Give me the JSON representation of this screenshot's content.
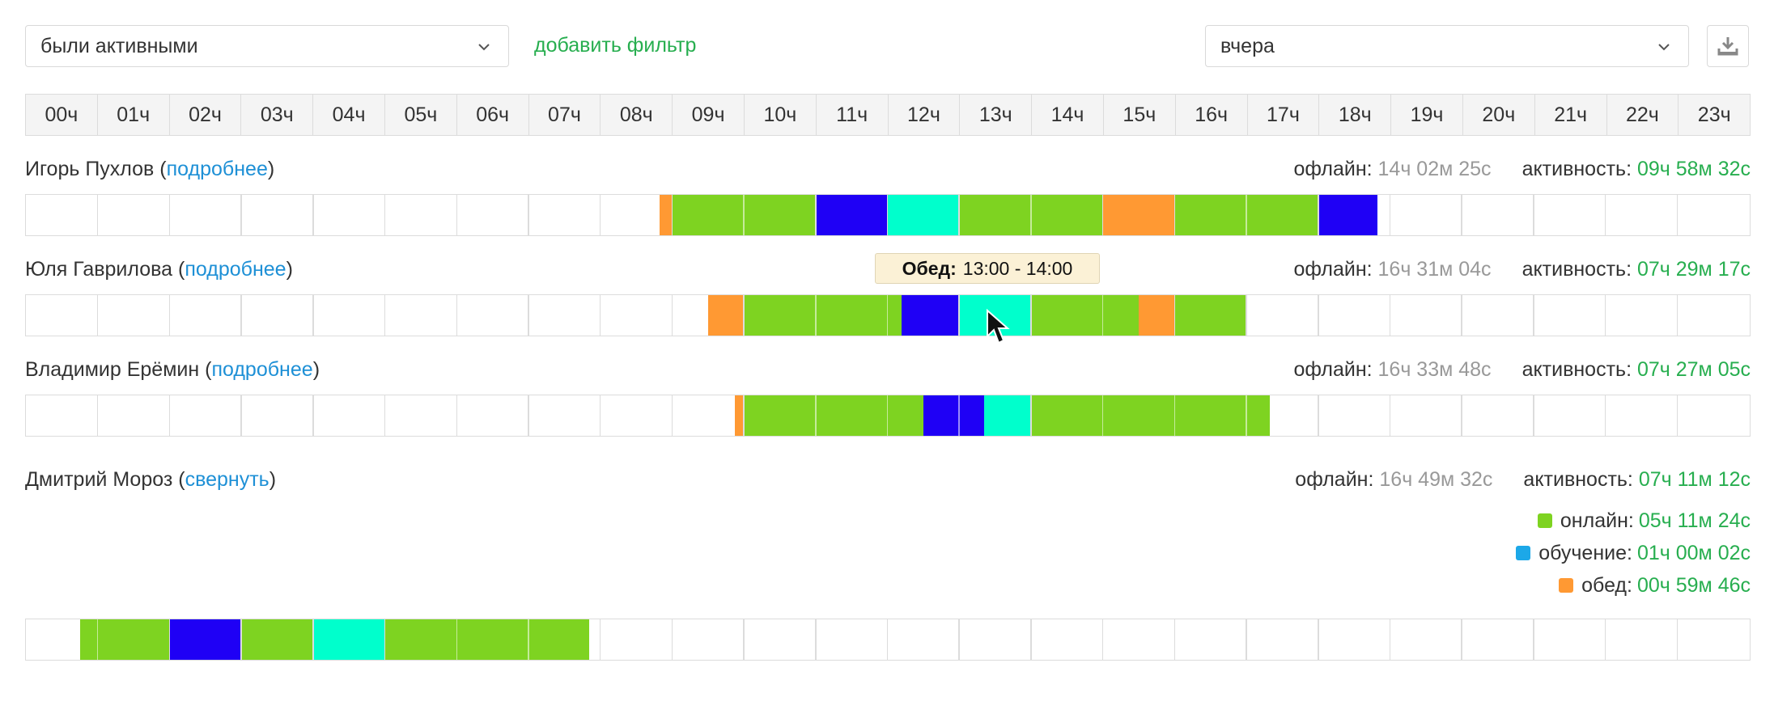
{
  "filter": {
    "selected": "были активными",
    "add_filter_label": "добавить фильтр"
  },
  "period": {
    "selected": "вчера"
  },
  "hours": [
    "00ч",
    "01ч",
    "02ч",
    "03ч",
    "04ч",
    "05ч",
    "06ч",
    "07ч",
    "08ч",
    "09ч",
    "10ч",
    "11ч",
    "12ч",
    "13ч",
    "14ч",
    "15ч",
    "16ч",
    "17ч",
    "18ч",
    "19ч",
    "20ч",
    "21ч",
    "22ч",
    "23ч"
  ],
  "labels": {
    "offline": "офлайн:",
    "activity": "активность:"
  },
  "colors": {
    "online": "#7ed321",
    "training": "#1f00f5",
    "lunch": "#ff9933",
    "meeting": "#00ffcc",
    "legend_training": "#1ca8e8"
  },
  "tooltip": {
    "title": "Обед:",
    "range": "13:00 - 14:00"
  },
  "employees": [
    {
      "name": "Игорь Пухлов",
      "link": "подробнее",
      "offline": "14ч 02м 25с",
      "activity": "09ч 58м 32с",
      "segments": [
        {
          "start": 8.83,
          "end": 9.0,
          "kind": "lunch"
        },
        {
          "start": 9.0,
          "end": 11.0,
          "kind": "online"
        },
        {
          "start": 11.0,
          "end": 12.0,
          "kind": "training"
        },
        {
          "start": 12.0,
          "end": 13.0,
          "kind": "meeting"
        },
        {
          "start": 13.0,
          "end": 15.0,
          "kind": "online"
        },
        {
          "start": 15.0,
          "end": 16.0,
          "kind": "lunch"
        },
        {
          "start": 16.0,
          "end": 18.0,
          "kind": "online"
        },
        {
          "start": 18.0,
          "end": 18.83,
          "kind": "training"
        }
      ]
    },
    {
      "name": "Юля Гаврилова",
      "link": "подробнее",
      "offline": "16ч 31м 04с",
      "activity": "07ч 29м 17с",
      "segments": [
        {
          "start": 9.5,
          "end": 10.0,
          "kind": "lunch"
        },
        {
          "start": 10.0,
          "end": 12.2,
          "kind": "online"
        },
        {
          "start": 12.2,
          "end": 13.0,
          "kind": "training"
        },
        {
          "start": 13.0,
          "end": 14.0,
          "kind": "meeting"
        },
        {
          "start": 14.0,
          "end": 15.5,
          "kind": "online"
        },
        {
          "start": 15.5,
          "end": 16.0,
          "kind": "lunch"
        },
        {
          "start": 16.0,
          "end": 17.0,
          "kind": "online"
        }
      ]
    },
    {
      "name": "Владимир Ерёмин",
      "link": "подробнее",
      "offline": "16ч 33м 48с",
      "activity": "07ч 27м 05с",
      "segments": [
        {
          "start": 9.87,
          "end": 10.0,
          "kind": "lunch"
        },
        {
          "start": 10.0,
          "end": 12.5,
          "kind": "online"
        },
        {
          "start": 12.5,
          "end": 13.35,
          "kind": "training"
        },
        {
          "start": 13.35,
          "end": 14.0,
          "kind": "meeting"
        },
        {
          "start": 14.0,
          "end": 17.33,
          "kind": "online"
        }
      ]
    },
    {
      "name": "Дмитрий Мороз",
      "link": "свернуть",
      "offline": "16ч 49м 32с",
      "activity": "07ч 11м 12с",
      "legend": [
        {
          "label": "онлайн:",
          "value": "05ч 11м 24с",
          "kind": "online"
        },
        {
          "label": "обучение:",
          "value": "01ч 00м 02с",
          "kind": "legend_training"
        },
        {
          "label": "обед:",
          "value": "00ч 59м 46с",
          "kind": "lunch"
        }
      ],
      "segments": [
        {
          "start": 0.75,
          "end": 2.0,
          "kind": "online"
        },
        {
          "start": 2.0,
          "end": 3.0,
          "kind": "training"
        },
        {
          "start": 3.0,
          "end": 4.0,
          "kind": "online"
        },
        {
          "start": 4.0,
          "end": 5.0,
          "kind": "meeting"
        },
        {
          "start": 5.0,
          "end": 7.85,
          "kind": "online"
        }
      ]
    }
  ]
}
